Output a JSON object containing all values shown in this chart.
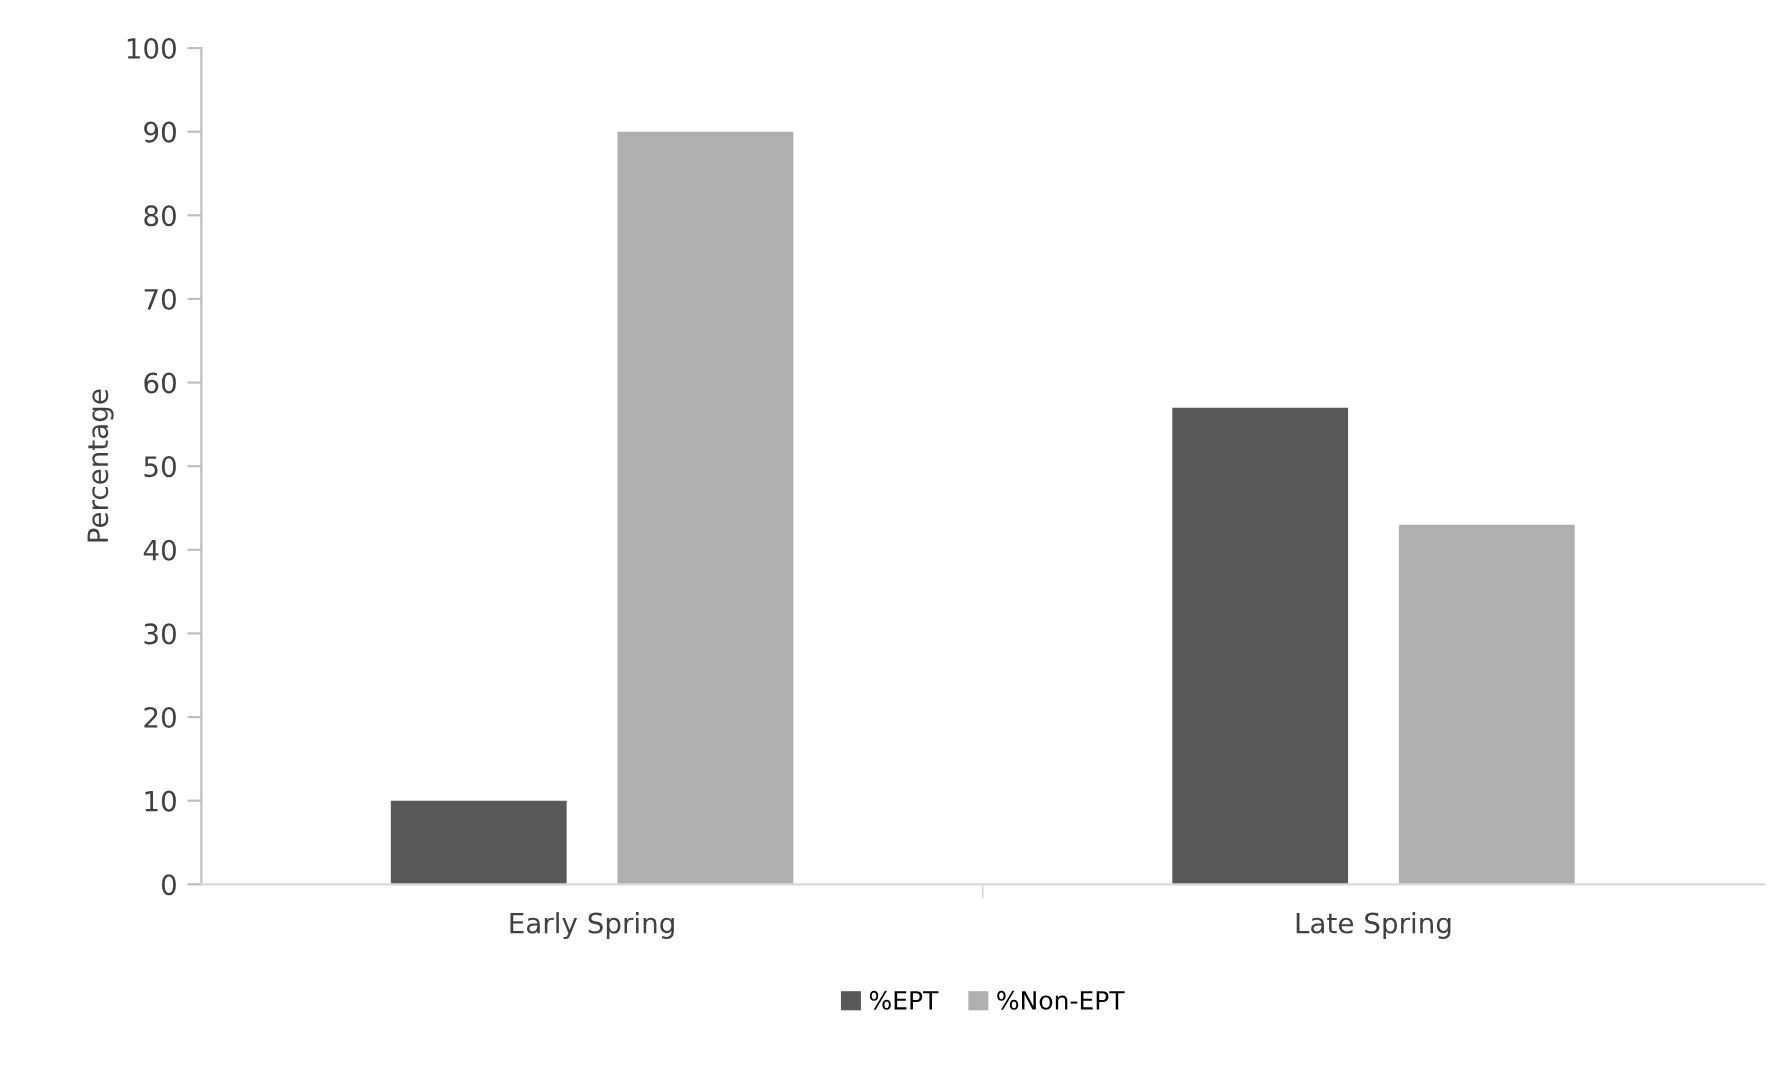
{
  "chart_data": {
    "type": "bar",
    "ylabel": "Percentage",
    "categories": [
      "Early Spring",
      "Late Spring"
    ],
    "series": [
      {
        "name": "%EPT",
        "color": "#595959",
        "values": [
          10,
          57
        ]
      },
      {
        "name": "%Non-EPT",
        "color": "#afafaf",
        "values": [
          90,
          43
        ]
      }
    ],
    "ylim": [
      0,
      100
    ],
    "yticks": [
      0,
      10,
      20,
      30,
      40,
      50,
      60,
      70,
      80,
      90,
      100
    ],
    "grid": false,
    "legend": "bottom"
  }
}
